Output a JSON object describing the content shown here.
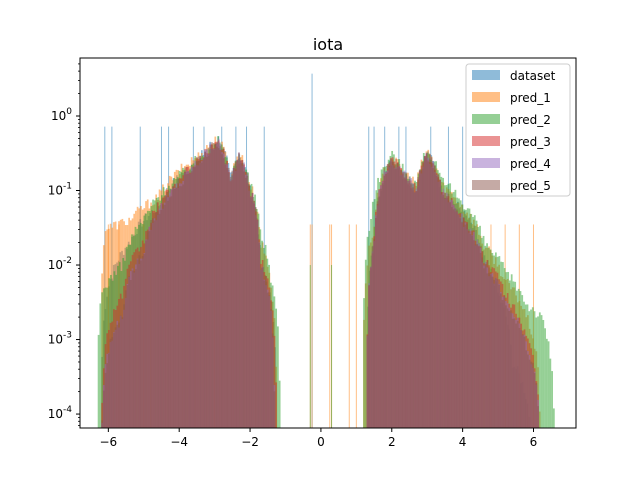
{
  "chart_data": {
    "type": "histogram",
    "title": "iota",
    "xlabel": "",
    "ylabel": "",
    "yscale": "log",
    "xlim": [
      -6.8,
      7.2
    ],
    "ylim": [
      6.5e-05,
      6
    ],
    "x_ticks": [
      -6,
      -4,
      -2,
      0,
      2,
      4,
      6
    ],
    "x_tick_labels": [
      "−6",
      "−4",
      "−2",
      "0",
      "2",
      "4",
      "6"
    ],
    "y_ticks": [
      0.0001,
      0.001,
      0.01,
      0.1,
      1
    ],
    "y_tick_labels": [
      "10⁻⁴",
      "10⁻³",
      "10⁻²",
      "10⁻¹",
      "10⁰"
    ],
    "grid": false,
    "legend_position": "top-right",
    "series": [
      {
        "name": "dataset",
        "color": "#1f77b4",
        "envelope": [
          [
            -6.2,
            0.0
          ],
          [
            -5.4,
            0.02
          ],
          [
            -4.6,
            0.06
          ],
          [
            -4.0,
            0.15
          ],
          [
            -3.4,
            0.28
          ],
          [
            -2.9,
            0.5
          ],
          [
            -2.55,
            0.14
          ],
          [
            -2.3,
            0.3
          ],
          [
            -2.0,
            0.1
          ],
          [
            -1.7,
            0.01
          ],
          [
            -1.4,
            0.003
          ],
          [
            -1.25,
            0.0
          ],
          [
            1.3,
            0.0
          ],
          [
            1.5,
            0.02
          ],
          [
            2.0,
            0.25
          ],
          [
            2.3,
            0.16
          ],
          [
            2.7,
            0.1
          ],
          [
            3.0,
            0.32
          ],
          [
            3.4,
            0.1
          ],
          [
            4.0,
            0.05
          ],
          [
            4.6,
            0.012
          ],
          [
            5.0,
            0.004
          ],
          [
            5.4,
            0.0005
          ],
          [
            6.0,
            0.0
          ]
        ],
        "spikes": [
          [
            -6.1,
            0.72
          ],
          [
            -5.9,
            0.72
          ],
          [
            -5.1,
            0.72
          ],
          [
            -4.5,
            0.72
          ],
          [
            -4.3,
            0.72
          ],
          [
            -3.6,
            0.72
          ],
          [
            -3.3,
            0.72
          ],
          [
            -2.8,
            0.72
          ],
          [
            -2.4,
            0.72
          ],
          [
            -2.1,
            0.72
          ],
          [
            -1.6,
            0.72
          ],
          [
            -0.25,
            3.7
          ],
          [
            1.35,
            0.72
          ],
          [
            1.5,
            0.72
          ],
          [
            1.8,
            0.72
          ],
          [
            2.2,
            0.72
          ],
          [
            2.4,
            0.72
          ],
          [
            3.1,
            0.72
          ],
          [
            3.6,
            0.72
          ],
          [
            4.0,
            0.72
          ]
        ]
      },
      {
        "name": "pred_1",
        "color": "#ff7f0e",
        "envelope": [
          [
            -6.2,
            0.0
          ],
          [
            -6.1,
            0.03
          ],
          [
            -5.4,
            0.04
          ],
          [
            -4.6,
            0.08
          ],
          [
            -4.0,
            0.18
          ],
          [
            -3.4,
            0.3
          ],
          [
            -2.9,
            0.5
          ],
          [
            -2.55,
            0.15
          ],
          [
            -2.3,
            0.32
          ],
          [
            -2.0,
            0.12
          ],
          [
            -1.7,
            0.02
          ],
          [
            -1.4,
            0.005
          ],
          [
            -1.25,
            0.0
          ],
          [
            1.2,
            0.0
          ],
          [
            1.5,
            0.03
          ],
          [
            2.0,
            0.28
          ],
          [
            2.3,
            0.18
          ],
          [
            2.7,
            0.12
          ],
          [
            3.0,
            0.34
          ],
          [
            3.4,
            0.12
          ],
          [
            4.0,
            0.06
          ],
          [
            4.6,
            0.018
          ],
          [
            5.2,
            0.006
          ],
          [
            5.8,
            0.002
          ],
          [
            6.2,
            0.0
          ]
        ],
        "spikes": [
          [
            -6.0,
            0.035
          ],
          [
            -5.7,
            0.035
          ],
          [
            -5.0,
            0.035
          ],
          [
            -4.8,
            0.035
          ],
          [
            -3.0,
            0.035
          ],
          [
            -0.3,
            0.035
          ],
          [
            -0.25,
            0.035
          ],
          [
            0.25,
            0.035
          ],
          [
            0.3,
            0.035
          ],
          [
            0.8,
            0.035
          ],
          [
            1.0,
            0.035
          ],
          [
            4.8,
            0.035
          ],
          [
            5.2,
            0.035
          ],
          [
            5.6,
            0.035
          ],
          [
            6.0,
            0.035
          ]
        ]
      },
      {
        "name": "pred_2",
        "color": "#2ca02c",
        "envelope": [
          [
            -6.3,
            0.0
          ],
          [
            -6.2,
            0.004
          ],
          [
            -5.6,
            0.01
          ],
          [
            -5.0,
            0.04
          ],
          [
            -4.4,
            0.1
          ],
          [
            -3.9,
            0.17
          ],
          [
            -3.4,
            0.28
          ],
          [
            -2.9,
            0.48
          ],
          [
            -2.55,
            0.14
          ],
          [
            -2.3,
            0.3
          ],
          [
            -2.0,
            0.12
          ],
          [
            -1.7,
            0.025
          ],
          [
            -1.4,
            0.006
          ],
          [
            -1.2,
            0.001
          ],
          [
            -1.15,
            0.0
          ],
          [
            1.2,
            0.0
          ],
          [
            1.4,
            0.04
          ],
          [
            2.0,
            0.3
          ],
          [
            2.3,
            0.2
          ],
          [
            2.7,
            0.12
          ],
          [
            3.0,
            0.35
          ],
          [
            3.4,
            0.13
          ],
          [
            4.0,
            0.07
          ],
          [
            4.6,
            0.02
          ],
          [
            5.2,
            0.008
          ],
          [
            5.8,
            0.003
          ],
          [
            6.2,
            0.002
          ],
          [
            6.6,
            0.0
          ]
        ],
        "spikes": [
          [
            -0.3,
            0.01
          ],
          [
            0.3,
            0.01
          ]
        ]
      },
      {
        "name": "pred_3",
        "color": "#d62728",
        "envelope": [
          [
            -6.2,
            0.0
          ],
          [
            -5.6,
            0.004
          ],
          [
            -5.0,
            0.02
          ],
          [
            -4.4,
            0.08
          ],
          [
            -3.9,
            0.15
          ],
          [
            -3.4,
            0.26
          ],
          [
            -2.9,
            0.45
          ],
          [
            -2.55,
            0.13
          ],
          [
            -2.3,
            0.28
          ],
          [
            -2.0,
            0.1
          ],
          [
            -1.7,
            0.012
          ],
          [
            -1.4,
            0.003
          ],
          [
            -1.25,
            0.0
          ],
          [
            1.3,
            0.0
          ],
          [
            1.5,
            0.02
          ],
          [
            2.0,
            0.26
          ],
          [
            2.3,
            0.17
          ],
          [
            2.7,
            0.1
          ],
          [
            3.0,
            0.3
          ],
          [
            3.4,
            0.1
          ],
          [
            4.0,
            0.04
          ],
          [
            4.6,
            0.012
          ],
          [
            5.2,
            0.004
          ],
          [
            5.8,
            0.001
          ],
          [
            6.2,
            0.0
          ]
        ],
        "spikes": []
      },
      {
        "name": "pred_4",
        "color": "#9467bd",
        "envelope": [
          [
            -6.2,
            0.0
          ],
          [
            -5.6,
            0.002
          ],
          [
            -5.0,
            0.015
          ],
          [
            -4.4,
            0.07
          ],
          [
            -3.9,
            0.14
          ],
          [
            -3.4,
            0.26
          ],
          [
            -2.9,
            0.45
          ],
          [
            -2.55,
            0.13
          ],
          [
            -2.3,
            0.28
          ],
          [
            -2.0,
            0.1
          ],
          [
            -1.7,
            0.01
          ],
          [
            -1.4,
            0.002
          ],
          [
            -1.3,
            0.0
          ],
          [
            1.3,
            0.0
          ],
          [
            1.5,
            0.02
          ],
          [
            2.0,
            0.26
          ],
          [
            2.3,
            0.17
          ],
          [
            2.7,
            0.1
          ],
          [
            3.0,
            0.3
          ],
          [
            3.4,
            0.1
          ],
          [
            4.0,
            0.04
          ],
          [
            4.6,
            0.01
          ],
          [
            5.2,
            0.003
          ],
          [
            5.8,
            0.0008
          ],
          [
            6.2,
            0.0
          ]
        ],
        "spikes": []
      },
      {
        "name": "pred_5",
        "color": "#8c564b",
        "envelope": [
          [
            -6.2,
            0.0
          ],
          [
            -5.6,
            0.002
          ],
          [
            -5.0,
            0.015
          ],
          [
            -4.4,
            0.07
          ],
          [
            -3.9,
            0.14
          ],
          [
            -3.4,
            0.26
          ],
          [
            -2.9,
            0.45
          ],
          [
            -2.55,
            0.13
          ],
          [
            -2.3,
            0.28
          ],
          [
            -2.0,
            0.1
          ],
          [
            -1.7,
            0.01
          ],
          [
            -1.4,
            0.002
          ],
          [
            -1.3,
            0.0
          ],
          [
            1.3,
            0.0
          ],
          [
            1.5,
            0.02
          ],
          [
            2.0,
            0.26
          ],
          [
            2.3,
            0.17
          ],
          [
            2.7,
            0.1
          ],
          [
            3.0,
            0.3
          ],
          [
            3.4,
            0.1
          ],
          [
            4.0,
            0.04
          ],
          [
            4.6,
            0.01
          ],
          [
            5.2,
            0.003
          ],
          [
            5.8,
            0.0008
          ],
          [
            6.2,
            0.0
          ]
        ],
        "spikes": []
      }
    ]
  }
}
